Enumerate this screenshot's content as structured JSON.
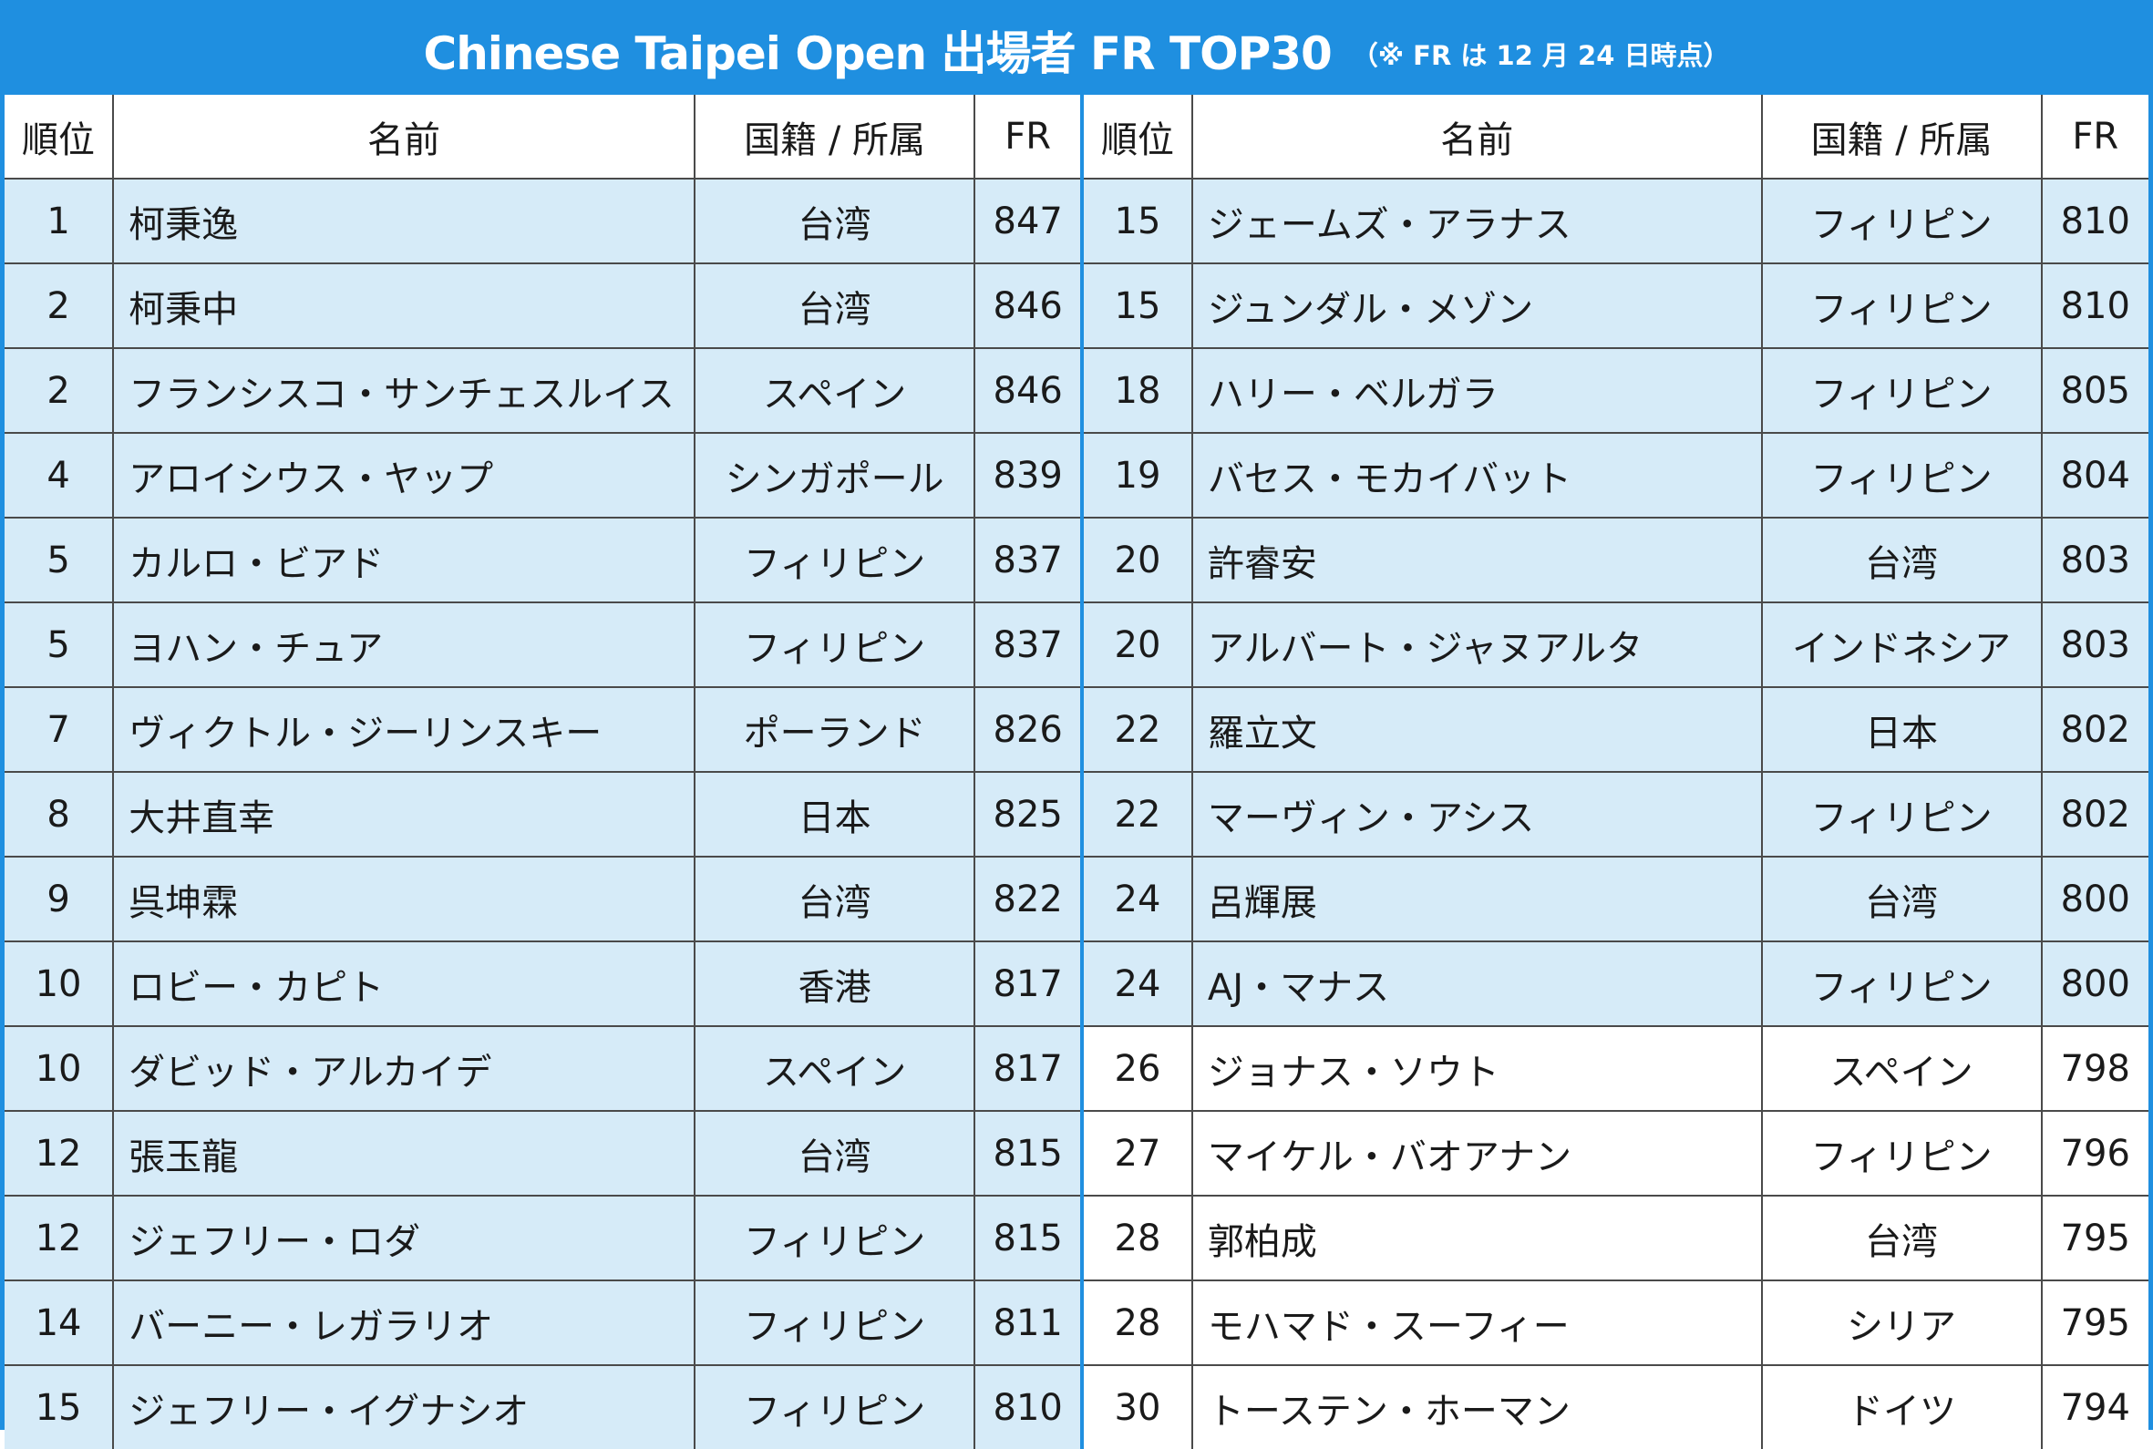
{
  "title": {
    "main": "Chinese Taipei Open 出場者 FR TOP30",
    "note": "（※ FR は 12 月 24 日時点）"
  },
  "headers": {
    "rank": "順位",
    "name": "名前",
    "nationality": "国籍 / 所属",
    "fr": "FR"
  },
  "colors": {
    "accent": "#1f8fe0",
    "highlight_row": "#d6ebf8",
    "plain_row": "#ffffff"
  },
  "left_rows": [
    {
      "rank": "1",
      "name": "柯秉逸",
      "nationality": "台湾",
      "fr": "847",
      "highlighted": true
    },
    {
      "rank": "2",
      "name": "柯秉中",
      "nationality": "台湾",
      "fr": "846",
      "highlighted": true
    },
    {
      "rank": "2",
      "name": "フランシスコ・サンチェスルイス",
      "nationality": "スペイン",
      "fr": "846",
      "highlighted": true
    },
    {
      "rank": "4",
      "name": "アロイシウス・ヤップ",
      "nationality": "シンガポール",
      "fr": "839",
      "highlighted": true
    },
    {
      "rank": "5",
      "name": "カルロ・ビアド",
      "nationality": "フィリピン",
      "fr": "837",
      "highlighted": true
    },
    {
      "rank": "5",
      "name": "ヨハン・チュア",
      "nationality": "フィリピン",
      "fr": "837",
      "highlighted": true
    },
    {
      "rank": "7",
      "name": "ヴィクトル・ジーリンスキー",
      "nationality": "ポーランド",
      "fr": "826",
      "highlighted": true
    },
    {
      "rank": "8",
      "name": "大井直幸",
      "nationality": "日本",
      "fr": "825",
      "highlighted": true
    },
    {
      "rank": "9",
      "name": "呉坤霖",
      "nationality": "台湾",
      "fr": "822",
      "highlighted": true
    },
    {
      "rank": "10",
      "name": "ロビー・カピト",
      "nationality": "香港",
      "fr": "817",
      "highlighted": true
    },
    {
      "rank": "10",
      "name": "ダビッド・アルカイデ",
      "nationality": "スペイン",
      "fr": "817",
      "highlighted": true
    },
    {
      "rank": "12",
      "name": "張玉龍",
      "nationality": "台湾",
      "fr": "815",
      "highlighted": true
    },
    {
      "rank": "12",
      "name": "ジェフリー・ロダ",
      "nationality": "フィリピン",
      "fr": "815",
      "highlighted": true
    },
    {
      "rank": "14",
      "name": "バーニー・レガラリオ",
      "nationality": "フィリピン",
      "fr": "811",
      "highlighted": true
    },
    {
      "rank": "15",
      "name": "ジェフリー・イグナシオ",
      "nationality": "フィリピン",
      "fr": "810",
      "highlighted": true
    }
  ],
  "right_rows": [
    {
      "rank": "15",
      "name": "ジェームズ・アラナス",
      "nationality": "フィリピン",
      "fr": "810",
      "highlighted": true
    },
    {
      "rank": "15",
      "name": "ジュンダル・メゾン",
      "nationality": "フィリピン",
      "fr": "810",
      "highlighted": true
    },
    {
      "rank": "18",
      "name": "ハリー・ベルガラ",
      "nationality": "フィリピン",
      "fr": "805",
      "highlighted": true
    },
    {
      "rank": "19",
      "name": "バセス・モカイバット",
      "nationality": "フィリピン",
      "fr": "804",
      "highlighted": true
    },
    {
      "rank": "20",
      "name": "許睿安",
      "nationality": "台湾",
      "fr": "803",
      "highlighted": true
    },
    {
      "rank": "20",
      "name": "アルバート・ジャヌアルタ",
      "nationality": "インドネシア",
      "fr": "803",
      "highlighted": true
    },
    {
      "rank": "22",
      "name": "羅立文",
      "nationality": "日本",
      "fr": "802",
      "highlighted": true
    },
    {
      "rank": "22",
      "name": "マーヴィン・アシス",
      "nationality": "フィリピン",
      "fr": "802",
      "highlighted": true
    },
    {
      "rank": "24",
      "name": "呂輝展",
      "nationality": "台湾",
      "fr": "800",
      "highlighted": true
    },
    {
      "rank": "24",
      "name": "AJ・マナス",
      "nationality": "フィリピン",
      "fr": "800",
      "highlighted": true
    },
    {
      "rank": "26",
      "name": "ジョナス・ソウト",
      "nationality": "スペイン",
      "fr": "798",
      "highlighted": false
    },
    {
      "rank": "27",
      "name": "マイケル・バオアナン",
      "nationality": "フィリピン",
      "fr": "796",
      "highlighted": false
    },
    {
      "rank": "28",
      "name": "郭柏成",
      "nationality": "台湾",
      "fr": "795",
      "highlighted": false
    },
    {
      "rank": "28",
      "name": "モハマド・スーフィー",
      "nationality": "シリア",
      "fr": "795",
      "highlighted": false
    },
    {
      "rank": "30",
      "name": "トーステン・ホーマン",
      "nationality": "ドイツ",
      "fr": "794",
      "highlighted": false
    }
  ]
}
